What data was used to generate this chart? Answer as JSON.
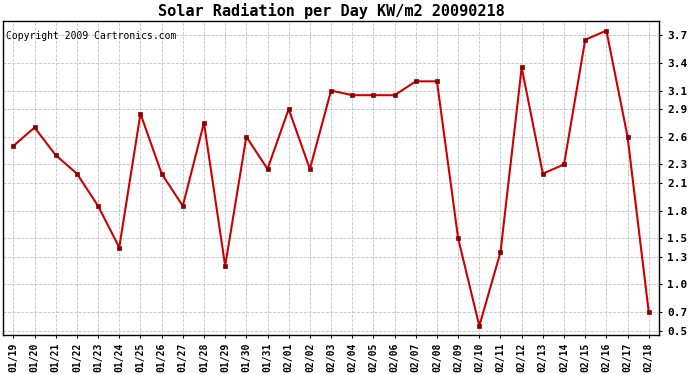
{
  "title": "Solar Radiation per Day KW/m2 20090218",
  "copyright": "Copyright 2009 Cartronics.com",
  "dates": [
    "01/19",
    "01/20",
    "01/21",
    "01/22",
    "01/23",
    "01/24",
    "01/25",
    "01/26",
    "01/27",
    "01/28",
    "01/29",
    "01/30",
    "01/31",
    "02/01",
    "02/02",
    "02/03",
    "02/04",
    "02/05",
    "02/06",
    "02/07",
    "02/08",
    "02/09",
    "02/10",
    "02/11",
    "02/12",
    "02/13",
    "02/14",
    "02/15",
    "02/16",
    "02/17",
    "02/18"
  ],
  "values": [
    2.5,
    2.7,
    2.4,
    2.2,
    1.85,
    1.4,
    2.85,
    2.2,
    1.85,
    2.75,
    1.2,
    2.6,
    2.25,
    2.9,
    2.25,
    3.1,
    3.05,
    3.05,
    3.05,
    3.2,
    3.2,
    1.5,
    0.55,
    1.35,
    3.35,
    2.2,
    2.3,
    3.65,
    3.75,
    2.6,
    0.7
  ],
  "ylim_low": 0.45,
  "ylim_high": 3.85,
  "yticks": [
    0.5,
    0.7,
    1.0,
    1.3,
    1.5,
    1.8,
    2.1,
    2.3,
    2.6,
    2.9,
    3.1,
    3.4,
    3.7
  ],
  "line_color": "#cc0000",
  "marker_color": "#880000",
  "bg_color": "#ffffff",
  "grid_color": "#bbbbbb",
  "title_fontsize": 11,
  "tick_fontsize": 7,
  "copyright_fontsize": 7
}
